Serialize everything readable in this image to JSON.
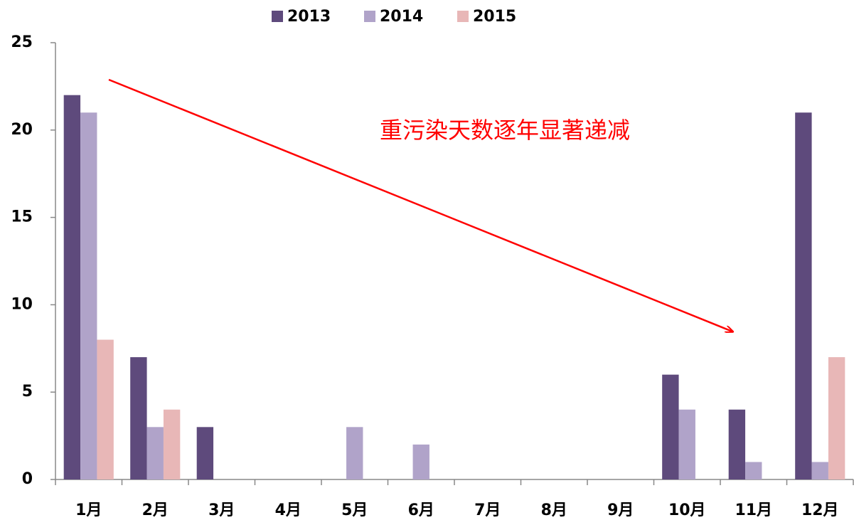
{
  "chart_data": {
    "type": "bar",
    "annotation": "重污染天数逐年显著递减",
    "categories": [
      "1月",
      "2月",
      "3月",
      "4月",
      "5月",
      "6月",
      "7月",
      "8月",
      "9月",
      "10月",
      "11月",
      "12月"
    ],
    "series": [
      {
        "name": "2013",
        "color": "#5e4a7c",
        "values": [
          22,
          7,
          3,
          0,
          0,
          0,
          0,
          0,
          0,
          6,
          4,
          21
        ]
      },
      {
        "name": "2014",
        "color": "#b0a3c9",
        "values": [
          21,
          3,
          0,
          0,
          3,
          2,
          0,
          0,
          0,
          4,
          1,
          1
        ]
      },
      {
        "name": "2015",
        "color": "#e8b7b7",
        "values": [
          8,
          4,
          0,
          0,
          0,
          0,
          0,
          0,
          0,
          0,
          0,
          7
        ]
      }
    ],
    "ylim": [
      0,
      25
    ],
    "yticks": [
      0,
      5,
      10,
      15,
      20,
      25
    ],
    "legend": "top",
    "grid": false
  }
}
